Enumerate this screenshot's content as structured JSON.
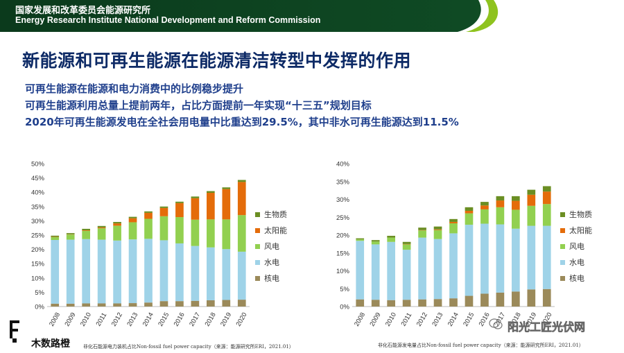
{
  "header": {
    "org_cn": "国家发展和改革委员会能源研究所",
    "org_en": "Energy Research Institute National Development and Reform Commission"
  },
  "slide": {
    "title": "新能源和可再生能源在能源清洁转型中发挥的作用",
    "bullets": [
      "可再生能源在能源和电力消费中的比例稳步提升",
      "可再生能源利用总量上提前两年，占比方面提前一年实现“十三五”规划目标",
      "2020年可再生能源发电在全社会用电量中比重达到29.5%，其中非水可再生能源达到11.5%"
    ]
  },
  "colors": {
    "header_dark": "#0e3b1f",
    "header_light": "#8fc31f",
    "hydro": "#9fd3e8",
    "nuclear": "#9b8a5a",
    "wind": "#92d050",
    "solar": "#e46c0a",
    "biomass": "#6b8e23"
  },
  "chart_data": [
    {
      "type": "bar",
      "stacked": true,
      "categories": [
        "2008",
        "2009",
        "2010",
        "2011",
        "2012",
        "2013",
        "2014",
        "2015",
        "2016",
        "2017",
        "2018",
        "2019",
        "2020"
      ],
      "ylim": [
        0,
        50
      ],
      "yticks": [
        "0%",
        "5%",
        "10%",
        "15%",
        "20%",
        "25%",
        "30%",
        "35%",
        "40%",
        "45%",
        "50%"
      ],
      "legend_position": "right",
      "series": [
        {
          "name": "核电",
          "key": "nuclear",
          "values": [
            1.0,
            1.0,
            1.1,
            1.1,
            1.1,
            1.2,
            1.4,
            1.9,
            1.9,
            2.0,
            2.2,
            2.3,
            2.4
          ]
        },
        {
          "name": "水电",
          "key": "hydro",
          "values": [
            22.3,
            22.4,
            22.5,
            22.3,
            22.0,
            22.3,
            22.3,
            21.3,
            20.2,
            19.2,
            18.5,
            17.8,
            16.8
          ]
        },
        {
          "name": "风电",
          "key": "wind",
          "values": [
            1.0,
            1.8,
            2.9,
            4.0,
            5.2,
            6.0,
            7.0,
            8.4,
            9.2,
            9.2,
            9.8,
            10.4,
            12.8
          ]
        },
        {
          "name": "太阳能",
          "key": "solar",
          "values": [
            0.1,
            0.1,
            0.2,
            0.3,
            0.8,
            1.4,
            2.1,
            2.9,
            4.9,
            7.5,
            9.3,
            10.6,
            11.6
          ]
        },
        {
          "name": "生物质",
          "key": "biomass",
          "values": [
            0.4,
            0.4,
            0.5,
            0.5,
            0.5,
            0.5,
            0.5,
            0.5,
            0.5,
            0.6,
            0.6,
            0.6,
            0.7
          ]
        }
      ],
      "caption": "非化石能源电力装机占比Non-fossil fuel power capacity（来源：能源研究所ERI，2021.01）"
    },
    {
      "type": "bar",
      "stacked": true,
      "categories": [
        "2008",
        "2009",
        "2010",
        "2011",
        "2012",
        "2013",
        "2014",
        "2015",
        "2016",
        "2017",
        "2018",
        "2019",
        "2020"
      ],
      "ylim": [
        0,
        40
      ],
      "yticks": [
        "0%",
        "5%",
        "10%",
        "15%",
        "20%",
        "25%",
        "30%",
        "35%",
        "40%"
      ],
      "legend_position": "right",
      "series": [
        {
          "name": "核电",
          "key": "nuclear",
          "values": [
            2.0,
            1.9,
            1.8,
            1.9,
            2.0,
            2.1,
            2.3,
            3.0,
            3.6,
            3.9,
            4.2,
            4.8,
            4.9
          ]
        },
        {
          "name": "水电",
          "key": "hydro",
          "values": [
            16.4,
            15.5,
            16.3,
            14.0,
            17.3,
            16.8,
            18.2,
            19.9,
            19.6,
            19.1,
            17.6,
            17.8,
            17.7
          ]
        },
        {
          "name": "风电",
          "key": "wind",
          "values": [
            0.4,
            0.8,
            1.2,
            1.5,
            2.0,
            2.5,
            2.8,
            3.2,
            4.0,
            4.8,
            5.3,
            5.6,
            6.1
          ]
        },
        {
          "name": "太阳能",
          "key": "solar",
          "values": [
            0.0,
            0.0,
            0.0,
            0.1,
            0.1,
            0.2,
            0.4,
            0.7,
            1.1,
            1.9,
            2.5,
            3.1,
            3.5
          ]
        },
        {
          "name": "生物质",
          "key": "biomass",
          "values": [
            0.3,
            0.4,
            0.5,
            0.6,
            0.7,
            0.8,
            0.8,
            1.0,
            1.0,
            1.2,
            1.3,
            1.4,
            1.5
          ]
        }
      ],
      "caption": "非化石能源发电量占比Non-fossil fuel power capacity（来源：能源研究所ERI，2021.01）"
    }
  ],
  "watermark": {
    "text": "阳光工匠光伏网",
    "corner_text": "木数路橙"
  }
}
